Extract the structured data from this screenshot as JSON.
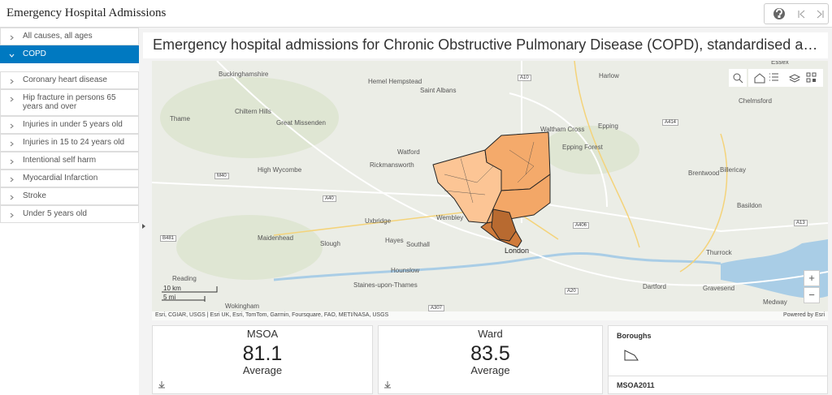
{
  "header": {
    "title": "Emergency Hospital Admissions"
  },
  "sidebar": {
    "items": [
      {
        "label": "All causes, all ages",
        "selected": false
      },
      {
        "label": "COPD",
        "selected": true
      },
      {
        "label": "Coronary heart disease",
        "selected": false
      },
      {
        "label": "Hip fracture in persons 65 years and over",
        "selected": false
      },
      {
        "label": "Injuries in under 5 years old",
        "selected": false
      },
      {
        "label": "Injuries in 15 to 24 years old",
        "selected": false
      },
      {
        "label": "Intentional self harm",
        "selected": false
      },
      {
        "label": "Myocardial Infarction",
        "selected": false
      },
      {
        "label": "Stroke",
        "selected": false
      },
      {
        "label": "Under 5 years old",
        "selected": false
      }
    ]
  },
  "map": {
    "title": "Emergency hospital admissions for Chronic Obstructive Pulmonary Disease (COPD), standardised admission ratio",
    "attribution": "Esri, CGIAR, USGS | Esri UK, Esri, TomTom, Garmin, Foursquare, FAO, METI/NASA, USGS",
    "powered_by": "Powered by Esri",
    "scale": [
      "10 km",
      "5 mi"
    ],
    "zoom": [
      "+",
      "−"
    ],
    "places": [
      "Buckinghamshire",
      "Hemel Hempstead",
      "Saint Albans",
      "Harlow",
      "Chelmsford",
      "Essex",
      "Thame",
      "Chiltern Hills",
      "Great Missenden",
      "Waltham Cross",
      "Epping",
      "Epping Forest",
      "Watford",
      "Rickmansworth",
      "High Wycombe",
      "Brentwood",
      "Billericay",
      "Basildon",
      "Wembley",
      "Uxbridge",
      "Maidenhead",
      "Slough",
      "Hayes",
      "Southall",
      "London",
      "Thurrock",
      "Hounslow",
      "Reading",
      "Staines-upon-Thames",
      "Dartford",
      "Gravesend",
      "Wokingham",
      "Medway"
    ],
    "roads": [
      "A10",
      "A414",
      "M40",
      "A40",
      "A406",
      "A13",
      "A20",
      "B481",
      "A307"
    ]
  },
  "cards": [
    {
      "title": "MSOA",
      "value": "81.1",
      "caption": "Average"
    },
    {
      "title": "Ward",
      "value": "83.5",
      "caption": "Average"
    }
  ],
  "legend": {
    "layers": [
      "Boroughs",
      "MSOA2011"
    ]
  }
}
